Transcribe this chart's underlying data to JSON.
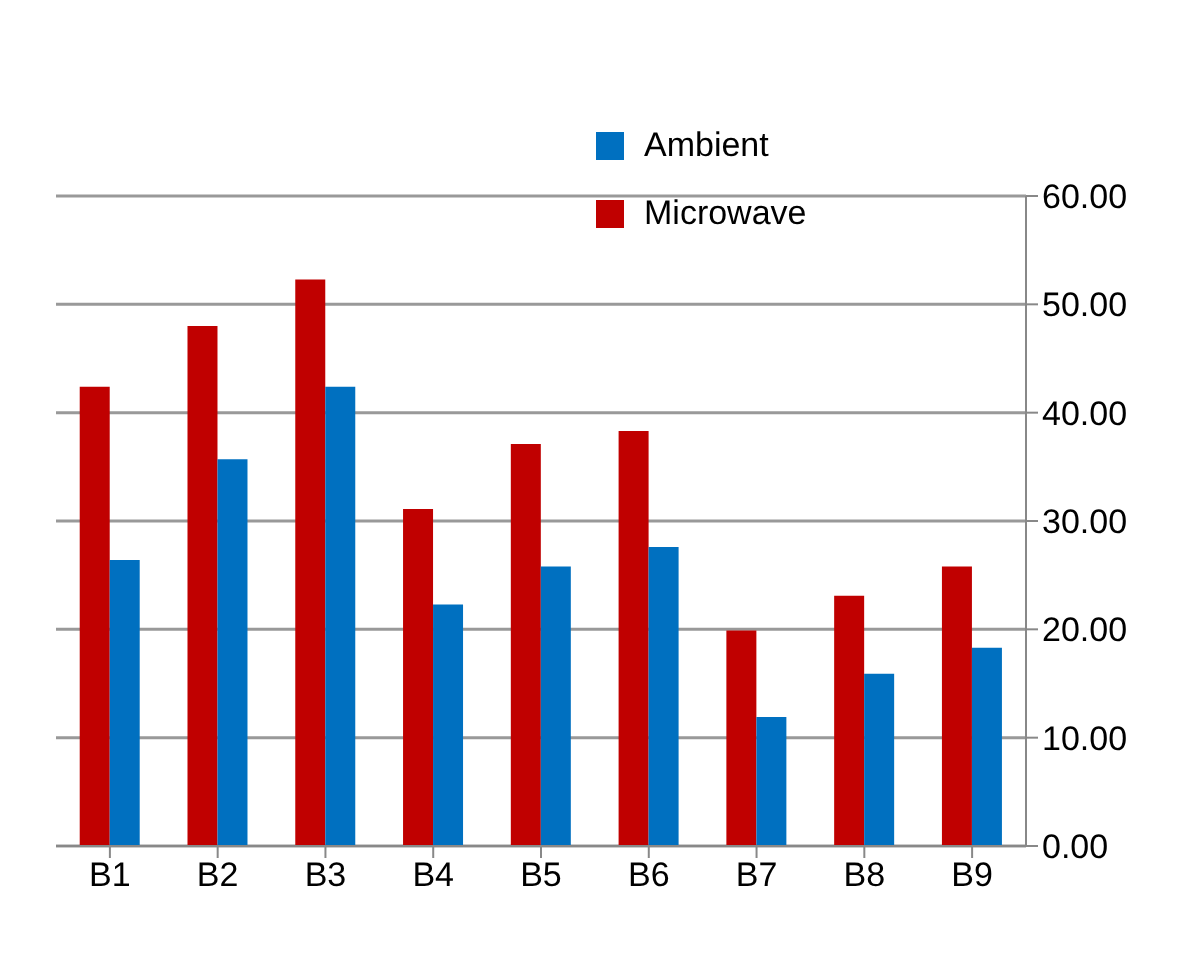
{
  "chart_data": {
    "type": "bar",
    "categories": [
      "B1",
      "B2",
      "B3",
      "B4",
      "B5",
      "B6",
      "B7",
      "B8",
      "B9"
    ],
    "series": [
      {
        "name": "Microwave",
        "color": "#c00000",
        "values": [
          42.4,
          48.0,
          52.3,
          31.1,
          37.1,
          38.3,
          19.9,
          23.1,
          25.8
        ]
      },
      {
        "name": "Ambient",
        "color": "#0070c0",
        "values": [
          26.4,
          35.7,
          42.4,
          22.3,
          25.8,
          27.6,
          11.9,
          15.9,
          18.3
        ]
      }
    ],
    "ylim": [
      0,
      60
    ],
    "yticks": [
      {
        "value": 0,
        "label": "0.00"
      },
      {
        "value": 10,
        "label": "10.00"
      },
      {
        "value": 20,
        "label": "20.00"
      },
      {
        "value": 30,
        "label": "30.00"
      },
      {
        "value": 40,
        "label": "40.00"
      },
      {
        "value": 50,
        "label": "50.00"
      },
      {
        "value": 60,
        "label": "60.00"
      }
    ],
    "grid": "y",
    "legend": "top right"
  }
}
